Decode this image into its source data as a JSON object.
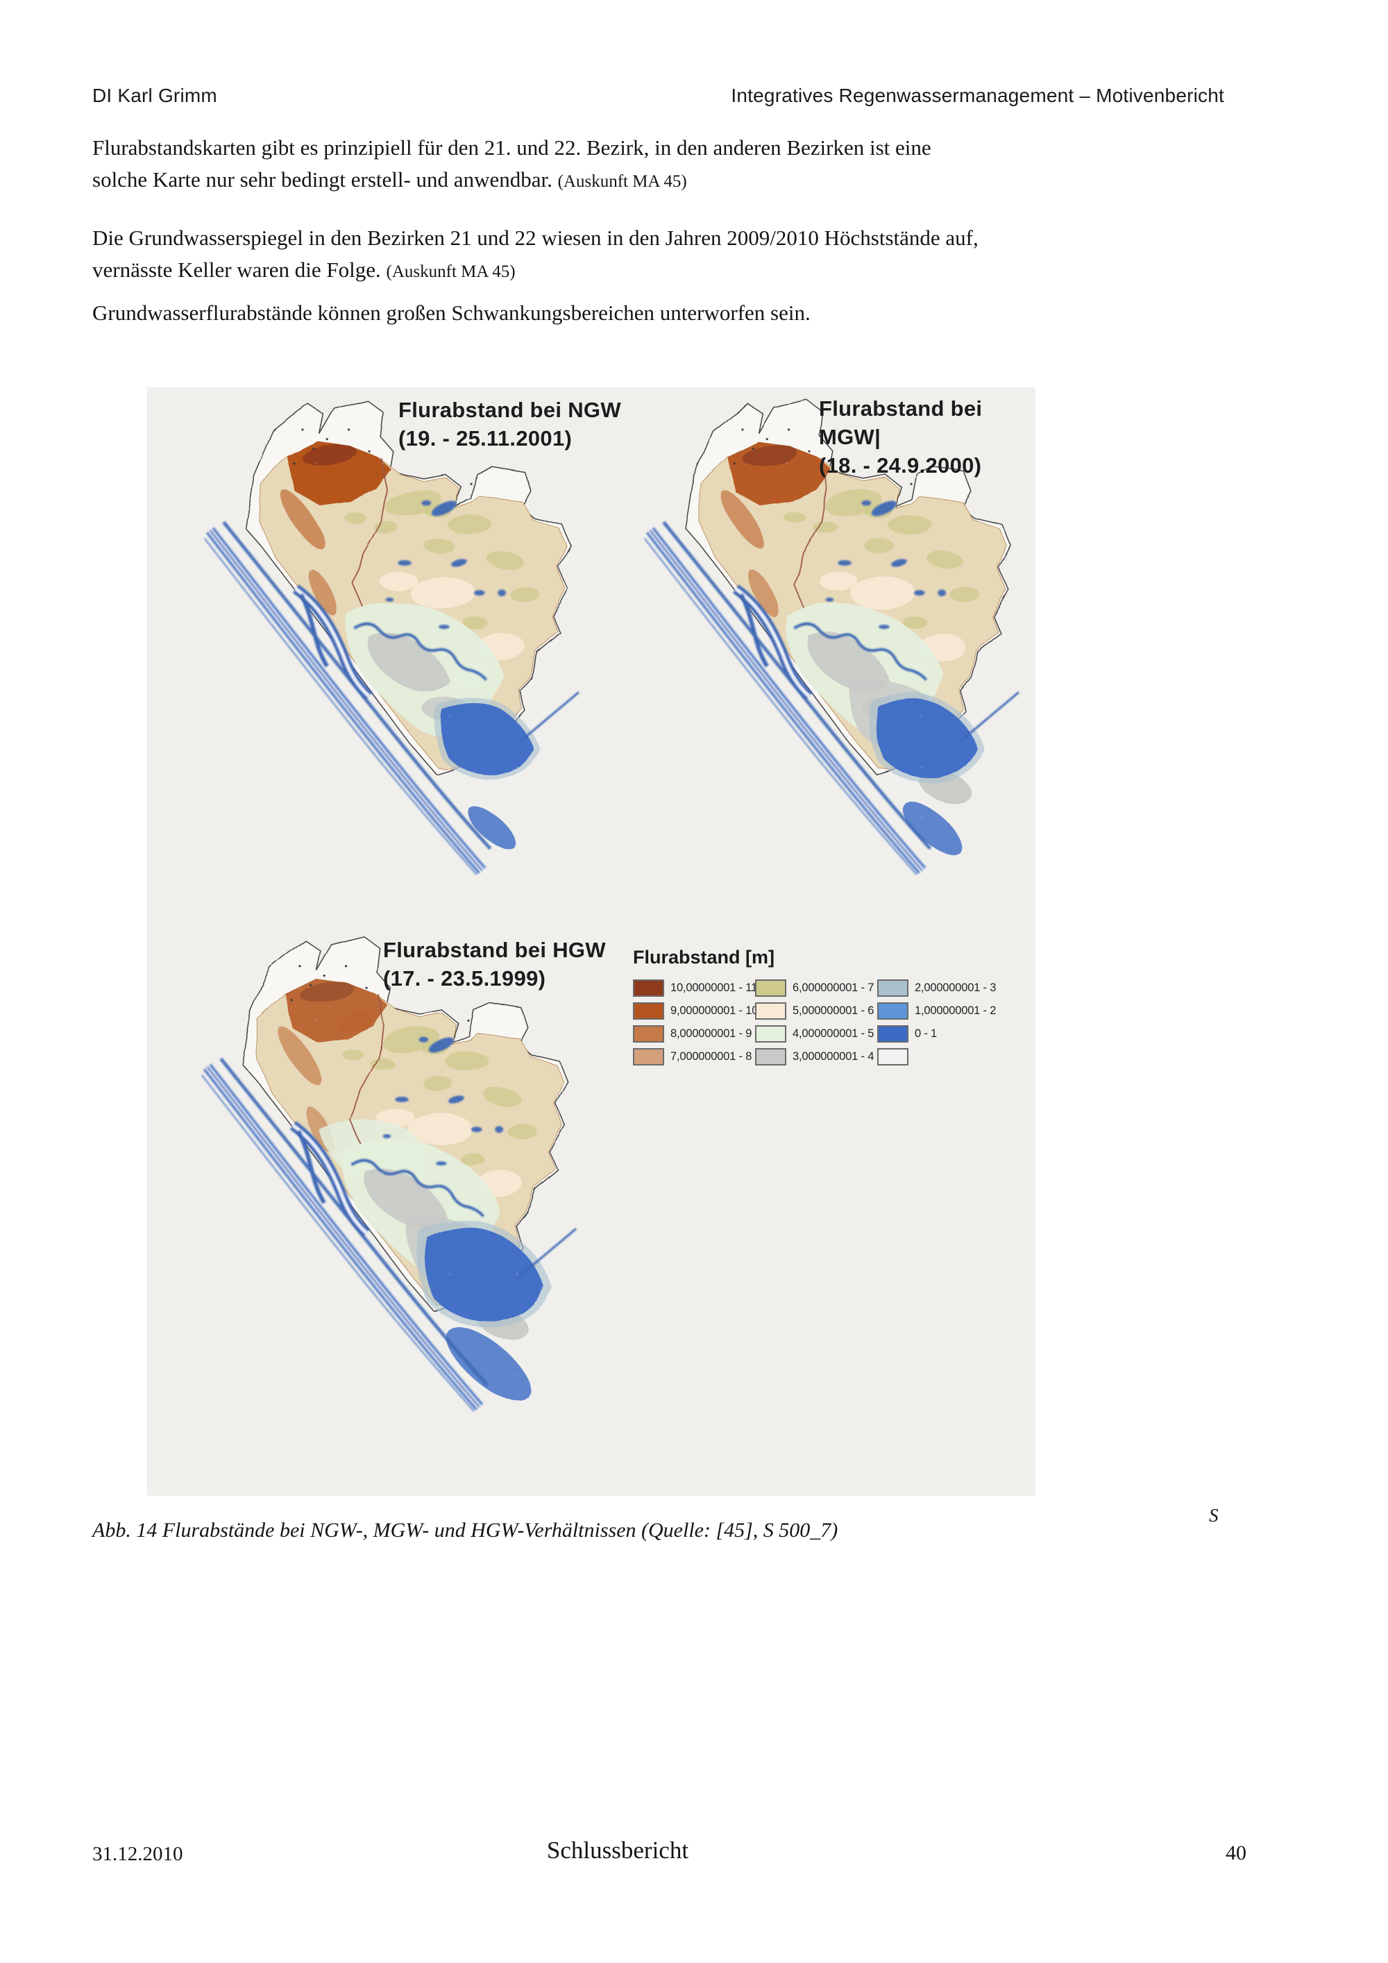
{
  "header": {
    "left": "DI Karl Grimm",
    "right": "Integratives Regenwassermanagement – Motivenbericht"
  },
  "paragraphs": [
    {
      "lines": [
        "Flurabstandskarten gibt es prinzipiell für den 21. und 22. Bezirk, in den anderen Bezirken ist eine",
        "solche Karte nur sehr bedingt erstell- und anwendbar."
      ],
      "ref": "(Auskunft  MA 45)"
    },
    {
      "lines": [
        "Die Grundwasserspiegel in den Bezirken 21 und 22 wiesen in den Jahren 2009/2010 Höchststände auf,",
        "vernässte Keller waren die Folge."
      ],
      "ref": "(Auskunft MA 45)"
    },
    {
      "lines": [
        "Grundwasserflurabstände können großen Schwankungsbereichen unterworfen sein."
      ],
      "ref": ""
    }
  ],
  "figure": {
    "maps": [
      {
        "id": "ngw",
        "title": "Flurabstand bei NGW",
        "subtitle": "(19. - 25.11.2001)"
      },
      {
        "id": "mgw",
        "title": "Flurabstand bei MGW|",
        "subtitle": "(18. - 24.9.2000)"
      },
      {
        "id": "hgw",
        "title": "Flurabstand bei HGW",
        "subtitle": "(17. - 23.5.1999)"
      }
    ],
    "legend": {
      "title": "Flurabstand [m]",
      "entries": [
        {
          "label": "10,00000001 - 11",
          "color": "#8f3a1c"
        },
        {
          "label": "9,000000001 - 10",
          "color": "#b5541f"
        },
        {
          "label": "8,000000001 - 9",
          "color": "#c57a48"
        },
        {
          "label": "7,000000001 - 8",
          "color": "#d4a07c"
        },
        {
          "label": "6,000000001 - 7",
          "color": "#cfc98c"
        },
        {
          "label": "5,000000001 - 6",
          "color": "#f8ead6"
        },
        {
          "label": "4,000000001 - 5",
          "color": "#e4efdd"
        },
        {
          "label": "3,000000001 - 4",
          "color": "#c9c9c7"
        },
        {
          "label": "2,000000001 - 3",
          "color": "#a9c0ce"
        },
        {
          "label": "1,000000001 - 2",
          "color": "#5e95d8"
        },
        {
          "label": "0 - 1",
          "color": "#3c6bc6"
        },
        {
          "label": "",
          "color": "#f2f1ef"
        }
      ]
    },
    "colors": {
      "map_base": "#e7d8b8",
      "outline": "#4a4a4a",
      "district_line": "#9a5844",
      "water": "#3f69b5",
      "water_light": "#5b84ca",
      "figure_background": "#f0efec"
    }
  },
  "caption": "Abb. 14 Flurabstände bei NGW-, MGW- und HGW-Verhältnissen (Quelle: [45], S 500_7)",
  "stray_mark": "S",
  "footer": {
    "date": "31.12.2010",
    "center": "Schlussbericht",
    "page": "40"
  }
}
